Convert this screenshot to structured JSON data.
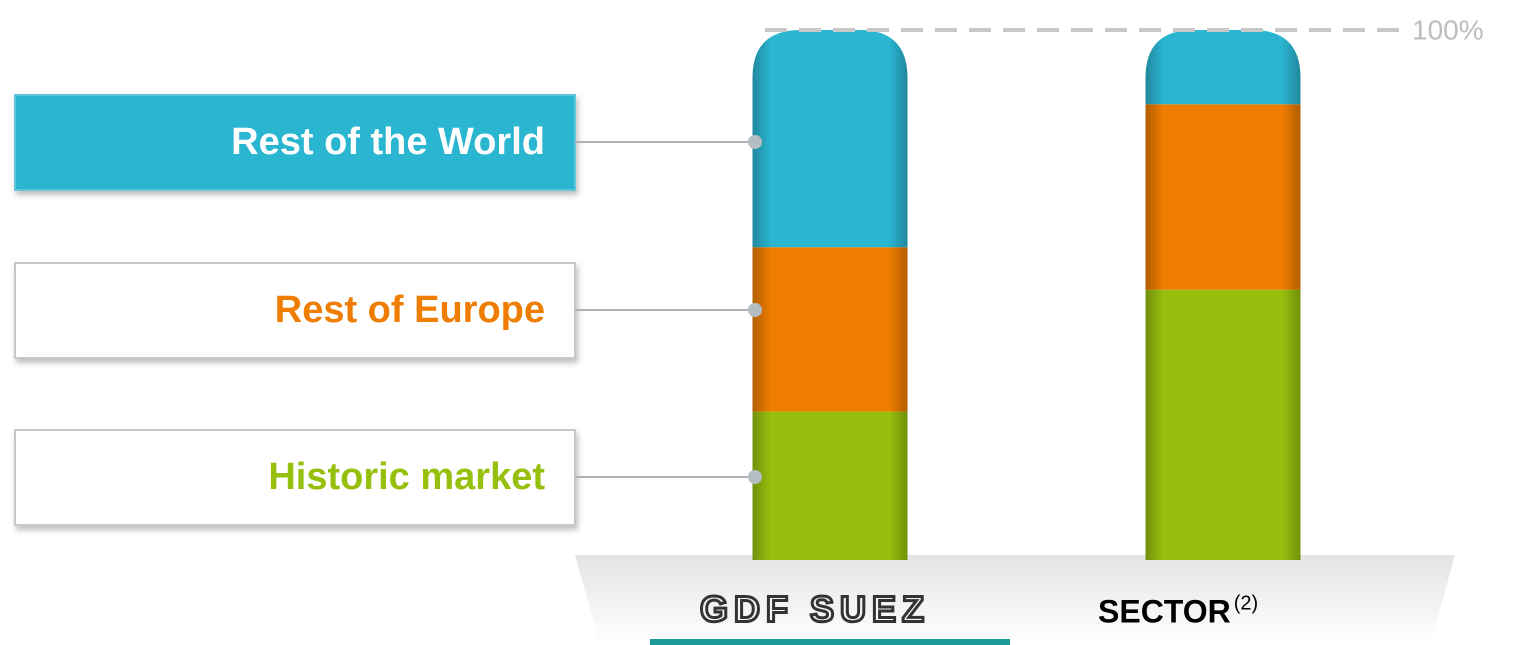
{
  "chart_data": {
    "type": "stacked_bar",
    "categories": [
      "GDF SUEZ",
      "SECTOR"
    ],
    "category_footnotes": [
      null,
      "(2)"
    ],
    "series": [
      {
        "name": "Historic market",
        "color": "#97c00e",
        "values": [
          28,
          51
        ]
      },
      {
        "name": "Rest of Europe",
        "color": "#ee7d00",
        "values": [
          31,
          35
        ]
      },
      {
        "name": "Rest of the World",
        "color": "#2bb5d1",
        "values": [
          41,
          14
        ]
      }
    ],
    "ylim": [
      0,
      100
    ],
    "yticks": [
      {
        "value": 100,
        "label": "100%"
      }
    ],
    "grid": true
  }
}
